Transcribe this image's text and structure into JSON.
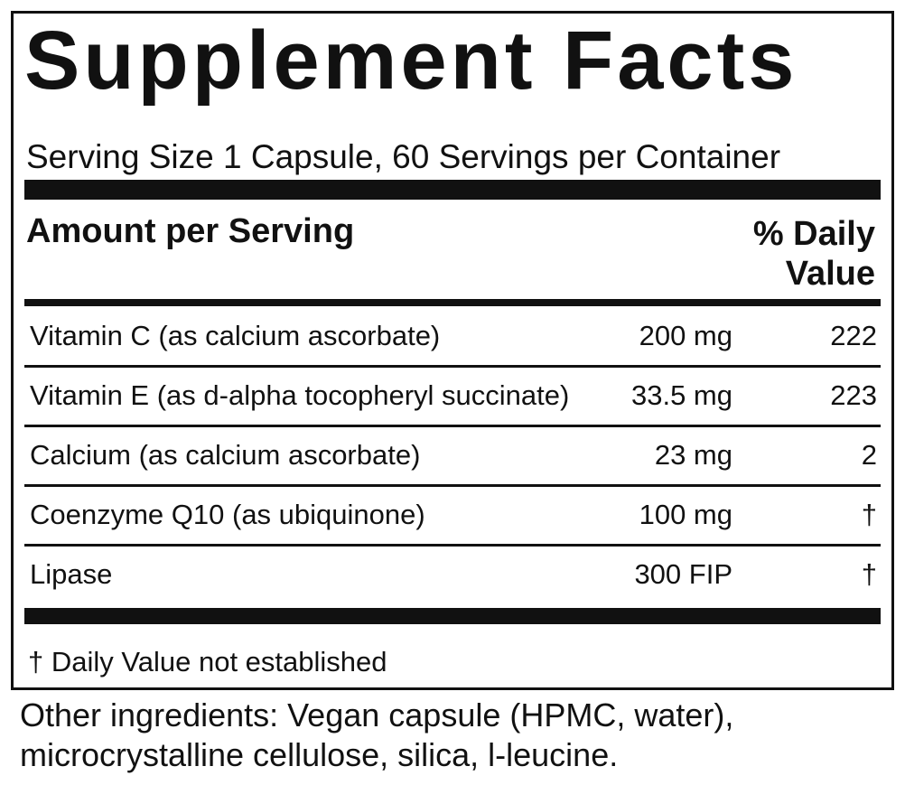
{
  "title": "Supplement Facts",
  "serving": "Serving Size 1 Capsule, 60 Servings per Container",
  "header": {
    "amount": "Amount per Serving",
    "daily_value": "% Daily Value"
  },
  "rows": [
    [
      "Vitamin C (as calcium ascorbate)",
      "200 mg",
      "222"
    ],
    [
      "Vitamin E (as d-alpha tocopheryl succinate)",
      "33.5 mg",
      "223"
    ],
    [
      "Calcium (as calcium ascorbate)",
      "23 mg",
      "2"
    ],
    [
      "Coenzyme Q10 (as ubiquinone)",
      "100 mg",
      "†"
    ],
    [
      "Lipase",
      "300 FIP",
      "†"
    ]
  ],
  "footnote": "† Daily Value not established",
  "other_ingredients": "Other ingredients: Vegan capsule (HPMC, water), microcrystalline cellulose, silica, l-leucine."
}
